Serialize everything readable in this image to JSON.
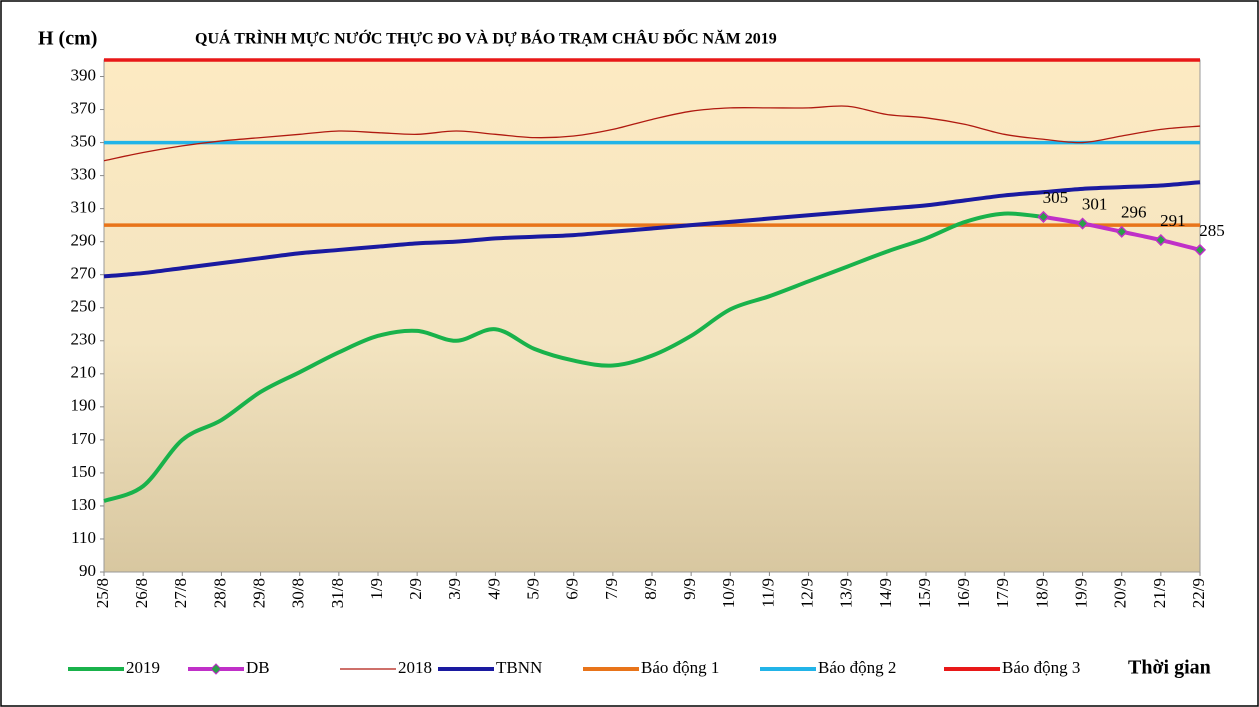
{
  "chart_data": {
    "type": "line",
    "title": "QUÁ TRÌNH MỰC NƯỚC THỰC ĐO VÀ DỰ BÁO TRẠM CHÂU ĐỐC NĂM 2019",
    "y_label": "H (cm)",
    "x_label": "Thời gian",
    "categories": [
      "25/8",
      "26/8",
      "27/8",
      "28/8",
      "29/8",
      "30/8",
      "31/8",
      "1/9",
      "2/9",
      "3/9",
      "4/9",
      "5/9",
      "6/9",
      "7/9",
      "8/9",
      "9/9",
      "10/9",
      "11/9",
      "12/9",
      "13/9",
      "14/9",
      "15/9",
      "16/9",
      "17/9",
      "18/9",
      "19/9",
      "20/9",
      "21/9",
      "22/9"
    ],
    "ylim": [
      90,
      400
    ],
    "yticks": [
      90,
      110,
      130,
      150,
      170,
      190,
      210,
      230,
      250,
      270,
      290,
      310,
      330,
      350,
      370,
      390
    ],
    "series": [
      {
        "name": "2019",
        "color": "#19b24b",
        "width": 4,
        "values": [
          133,
          142,
          170,
          182,
          199,
          211,
          223,
          233,
          236,
          230,
          237,
          225,
          218,
          215,
          221,
          233,
          249,
          257,
          266,
          275,
          284,
          292,
          302,
          307,
          305,
          null,
          null,
          null,
          null
        ]
      },
      {
        "name": "DB",
        "color": "#c030c8",
        "width": 4,
        "markers": true,
        "values": [
          null,
          null,
          null,
          null,
          null,
          null,
          null,
          null,
          null,
          null,
          null,
          null,
          null,
          null,
          null,
          null,
          null,
          null,
          null,
          null,
          null,
          null,
          null,
          null,
          305,
          301,
          296,
          291,
          285
        ],
        "value_labels": [
          null,
          null,
          null,
          null,
          null,
          null,
          null,
          null,
          null,
          null,
          null,
          null,
          null,
          null,
          null,
          null,
          null,
          null,
          null,
          null,
          null,
          null,
          null,
          null,
          "305",
          "301",
          "296",
          "291",
          "285"
        ]
      },
      {
        "name": "2018",
        "color": "#b01a10",
        "width": 1.3,
        "values": [
          339,
          344,
          348,
          351,
          353,
          355,
          357,
          356,
          355,
          357,
          355,
          353,
          354,
          358,
          364,
          369,
          371,
          371,
          371,
          372,
          367,
          365,
          361,
          355,
          352,
          350,
          354,
          358,
          360
        ]
      },
      {
        "name": "TBNN",
        "color": "#1a1aa0",
        "width": 4,
        "values": [
          269,
          271,
          274,
          277,
          280,
          283,
          285,
          287,
          289,
          290,
          292,
          293,
          294,
          296,
          298,
          300,
          302,
          304,
          306,
          308,
          310,
          312,
          315,
          318,
          320,
          322,
          323,
          324,
          326
        ]
      }
    ],
    "thresholds": [
      {
        "name": "Báo động 1",
        "color": "#e8741a",
        "value": 300
      },
      {
        "name": "Báo động 2",
        "color": "#22b4e8",
        "value": 350
      },
      {
        "name": "Báo động 3",
        "color": "#e81818",
        "value": 400
      }
    ]
  }
}
